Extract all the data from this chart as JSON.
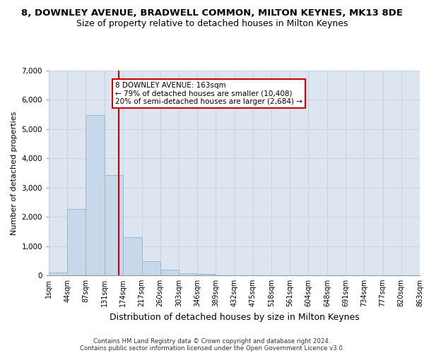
{
  "title": "8, DOWNLEY AVENUE, BRADWELL COMMON, MILTON KEYNES, MK13 8DE",
  "subtitle": "Size of property relative to detached houses in Milton Keynes",
  "xlabel": "Distribution of detached houses by size in Milton Keynes",
  "ylabel": "Number of detached properties",
  "bar_color": "#c8d8ea",
  "bar_edge_color": "#9ab8d0",
  "grid_color": "#c8d4e4",
  "background_color": "#dde6f0",
  "vline_color": "#cc0000",
  "vline_x": 163,
  "annotation_text": "8 DOWNLEY AVENUE: 163sqm\n← 79% of detached houses are smaller (10,408)\n20% of semi-detached houses are larger (2,684) →",
  "annotation_box_facecolor": "#ffffff",
  "annotation_box_edgecolor": "#cc0000",
  "footnote_line1": "Contains HM Land Registry data © Crown copyright and database right 2024.",
  "footnote_line2": "Contains public sector information licensed under the Open Government Licence v3.0.",
  "bin_edges": [
    1,
    44,
    87,
    131,
    174,
    217,
    260,
    303,
    346,
    389,
    432,
    475,
    518,
    561,
    604,
    648,
    691,
    734,
    777,
    820,
    863
  ],
  "bin_counts": [
    100,
    2270,
    5480,
    3430,
    1310,
    480,
    195,
    80,
    50,
    0,
    0,
    0,
    0,
    0,
    0,
    0,
    0,
    0,
    0,
    0
  ],
  "ylim": [
    0,
    7000
  ],
  "yticks": [
    0,
    1000,
    2000,
    3000,
    4000,
    5000,
    6000,
    7000
  ],
  "title_fontsize": 9.5,
  "subtitle_fontsize": 9,
  "ylabel_fontsize": 8,
  "xlabel_fontsize": 9,
  "tick_fontsize": 7,
  "annot_fontsize": 7.5,
  "footnote_fontsize": 6.2
}
